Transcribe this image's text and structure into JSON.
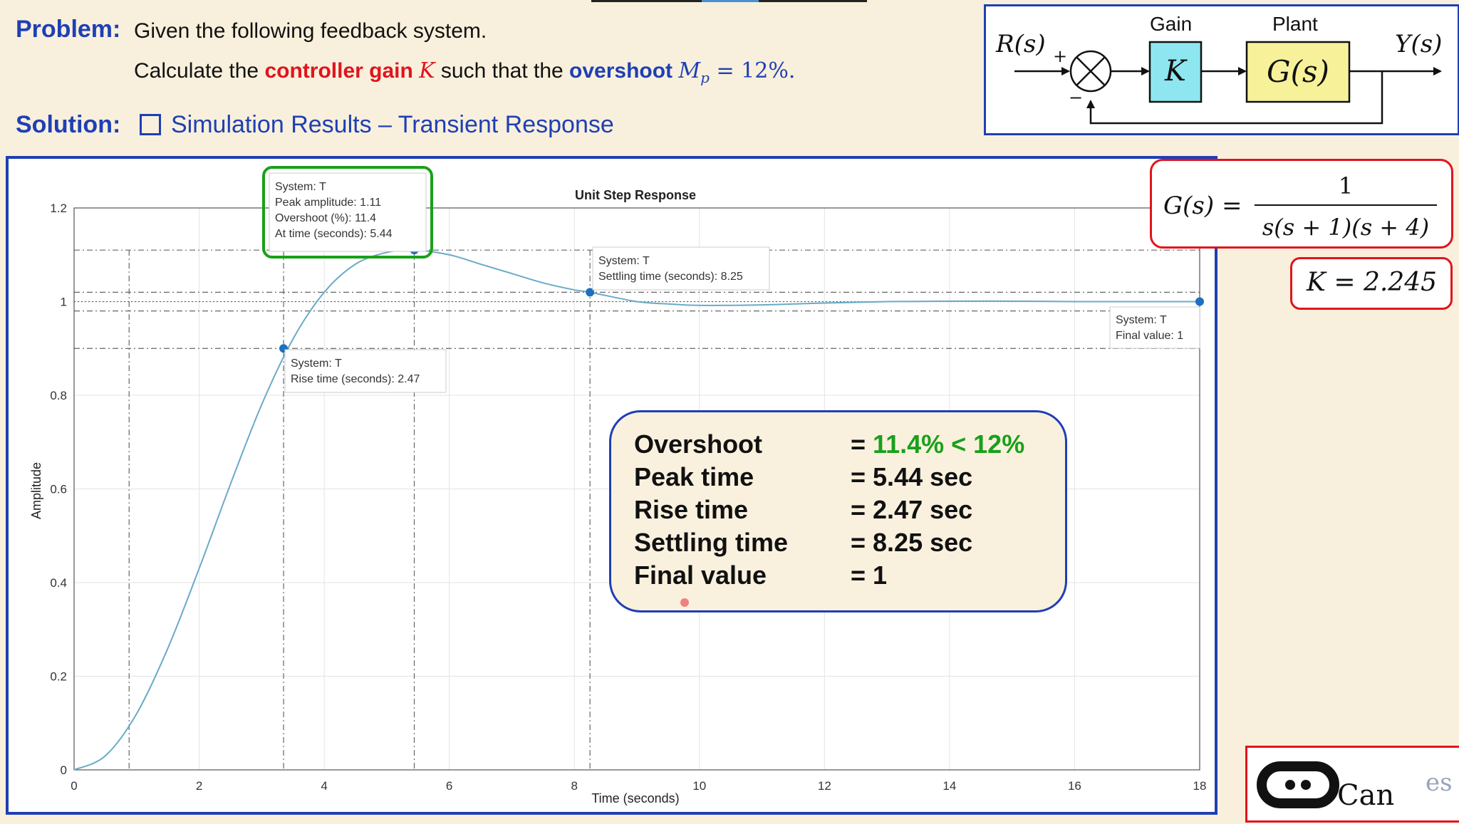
{
  "problem": {
    "label": "Problem:",
    "text": "Given the following feedback system.",
    "line2_prefix": "Calculate the ",
    "controller_gain_text": "controller gain",
    "gain_symbol": "K",
    "line2_mid": " such that the ",
    "overshoot_text": "overshoot",
    "mp_expr": "M",
    "mp_sub": "p",
    "mp_value": " = 12%."
  },
  "solution": {
    "label": "Solution:",
    "text": "Simulation Results – Transient Response"
  },
  "block_diagram": {
    "input": "R(s)",
    "plus_sign": "+",
    "minus_sign": "−",
    "gain_title": "Gain",
    "gain_block": "K",
    "plant_title": "Plant",
    "plant_block": "G(s)",
    "output": "Y(s)",
    "colors": {
      "gain_fill": "#8ee6f0",
      "plant_fill": "#f7f29a",
      "frame": "#1f3fb5"
    }
  },
  "formula": {
    "lhs": "G(s) =",
    "numerator": "1",
    "denominator": "s(s + 1)(s + 4)"
  },
  "gain_value": {
    "text": "K = 2.245"
  },
  "results": {
    "overshoot_label": "Overshoot",
    "overshoot_eq": "= ",
    "overshoot_value": "11.4% < 12%",
    "peak_label": "Peak time",
    "peak_value": "= 5.44 sec",
    "rise_label": "Rise time",
    "rise_value": "= 2.47 sec",
    "settling_label": "Settling time",
    "settling_value": "= 8.25 sec",
    "final_label": "Final value",
    "final_value": "= 1"
  },
  "datatips": {
    "peak": {
      "l1": "System: T",
      "l2": "Peak amplitude: 1.11",
      "l3": "Overshoot (%): 11.4",
      "l4": "At time (seconds): 5.44"
    },
    "settling": {
      "l1": "System: T",
      "l2": "Settling time (seconds): 8.25"
    },
    "rise": {
      "l1": "System: T",
      "l2": "Rise time (seconds): 2.47"
    },
    "final": {
      "l1": "System: T",
      "l2": "Final value: 1"
    }
  },
  "logo": {
    "text": "Can",
    "tail": "es"
  },
  "chart_data": {
    "type": "line",
    "title": "Unit Step Response",
    "xlabel": "Time (seconds)",
    "ylabel": "Amplitude",
    "xlim": [
      0,
      18
    ],
    "ylim": [
      0,
      1.2
    ],
    "xticks": [
      0,
      2,
      4,
      6,
      8,
      10,
      12,
      14,
      16,
      18
    ],
    "yticks": [
      0,
      0.2,
      0.4,
      0.6,
      0.8,
      1,
      1.2
    ],
    "grid": true,
    "series": [
      {
        "x": [
          0,
          0.5,
          1,
          1.5,
          2,
          2.5,
          3,
          3.5,
          4,
          4.5,
          5,
          5.44,
          6,
          6.5,
          7,
          7.5,
          8,
          8.25,
          9,
          9.5,
          10,
          11,
          12,
          13,
          14,
          15,
          16,
          17,
          18
        ],
        "y": [
          0,
          0.03,
          0.12,
          0.26,
          0.43,
          0.61,
          0.78,
          0.92,
          1.02,
          1.08,
          1.105,
          1.11,
          1.1,
          1.08,
          1.06,
          1.04,
          1.025,
          1.02,
          1.0,
          0.995,
          0.992,
          0.993,
          0.997,
          1.0,
          1.001,
          1.001,
          1.0,
          1.0,
          1.0
        ]
      }
    ],
    "markers": [
      {
        "kind": "peak",
        "x": 5.44,
        "y": 1.11
      },
      {
        "kind": "rise",
        "x": 3.35,
        "y": 0.9
      },
      {
        "kind": "settling",
        "x": 8.25,
        "y": 1.02
      },
      {
        "kind": "final",
        "x": 18,
        "y": 1.0
      }
    ],
    "reference_lines": {
      "horizontal": [
        1.11,
        1.02,
        0.98,
        0.9,
        1.0
      ],
      "vertical": [
        0.88,
        3.35,
        5.44,
        8.25
      ]
    }
  }
}
